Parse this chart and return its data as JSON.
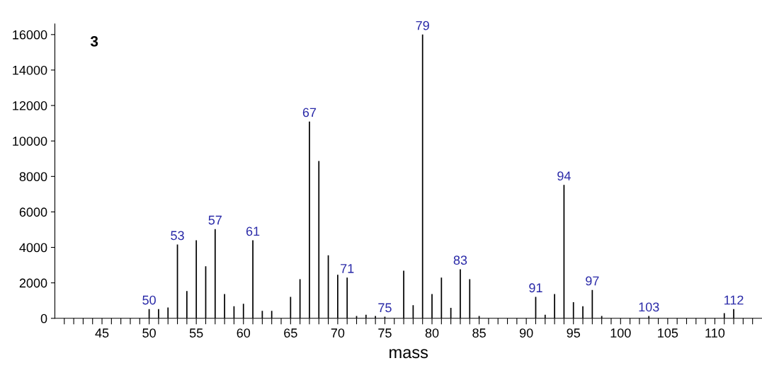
{
  "chart_data": {
    "type": "bar",
    "xlabel": "mass",
    "color": "#000000",
    "x": [
      50,
      51,
      52,
      53,
      54,
      55,
      56,
      57,
      58,
      59,
      60,
      61,
      62,
      63,
      65,
      66,
      67,
      68,
      69,
      70,
      71,
      72,
      73,
      74,
      75,
      77,
      78,
      79,
      80,
      81,
      82,
      83,
      84,
      85,
      91,
      92,
      93,
      94,
      95,
      96,
      97,
      98,
      103,
      111,
      112
    ],
    "values": [
      520,
      520,
      610,
      4160,
      1540,
      4400,
      2930,
      5030,
      1370,
      680,
      820,
      4400,
      420,
      420,
      1210,
      2210,
      11100,
      8870,
      3550,
      2460,
      2300,
      130,
      200,
      130,
      90,
      2690,
      740,
      16000,
      1370,
      2300,
      590,
      2770,
      2210,
      130,
      1210,
      200,
      1370,
      7520,
      910,
      680,
      1600,
      130,
      130,
      290,
      520
    ],
    "annotations": [
      "3",
      {
        "text": "50",
        "x": 50,
        "y": 520
      },
      {
        "text": "53",
        "x": 53,
        "y": 4160
      },
      {
        "text": "57",
        "x": 57,
        "y": 5030
      },
      {
        "text": "61",
        "x": 61,
        "y": 4400
      },
      {
        "text": "67",
        "x": 67,
        "y": 11100
      },
      {
        "text": "71",
        "x": 71,
        "y": 2300
      },
      {
        "text": "75",
        "x": 75,
        "y": 90
      },
      {
        "text": "79",
        "x": 79,
        "y": 16000
      },
      {
        "text": "83",
        "x": 83,
        "y": 2770
      },
      {
        "text": "91",
        "x": 91,
        "y": 1210
      },
      {
        "text": "94",
        "x": 94,
        "y": 7520
      },
      {
        "text": "97",
        "x": 97,
        "y": 1600
      },
      {
        "text": "103",
        "x": 103,
        "y": 130
      },
      {
        "text": "112",
        "x": 112,
        "y": 520
      }
    ],
    "xlim": [
      40,
      115
    ],
    "xticks": [
      {
        "value": 41,
        "label": null
      },
      {
        "value": 42,
        "label": null
      },
      {
        "value": 43,
        "label": null
      },
      {
        "value": 44,
        "label": null
      },
      45,
      {
        "value": 46,
        "label": null
      },
      {
        "value": 47,
        "label": null
      },
      {
        "value": 48,
        "label": null
      },
      {
        "value": 49,
        "label": null
      },
      50,
      {
        "value": 51,
        "label": null
      },
      {
        "value": 52,
        "label": null
      },
      {
        "value": 53,
        "label": null
      },
      {
        "value": 54,
        "label": null
      },
      55,
      {
        "value": 56,
        "label": null
      },
      {
        "value": 57,
        "label": null
      },
      {
        "value": 58,
        "label": null
      },
      {
        "value": 59,
        "label": null
      },
      60,
      {
        "value": 61,
        "label": null
      },
      {
        "value": 62,
        "label": null
      },
      {
        "value": 63,
        "label": null
      },
      {
        "value": 64,
        "label": null
      },
      65,
      {
        "value": 66,
        "label": null
      },
      {
        "value": 67,
        "label": null
      },
      {
        "value": 68,
        "label": null
      },
      {
        "value": 69,
        "label": null
      },
      70,
      {
        "value": 71,
        "label": null
      },
      {
        "value": 72,
        "label": null
      },
      {
        "value": 73,
        "label": null
      },
      {
        "value": 74,
        "label": null
      },
      75,
      {
        "value": 76,
        "label": null
      },
      {
        "value": 77,
        "label": null
      },
      {
        "value": 78,
        "label": null
      },
      {
        "value": 79,
        "label": null
      },
      80,
      {
        "value": 81,
        "label": null
      },
      {
        "value": 82,
        "label": null
      },
      {
        "value": 83,
        "label": null
      },
      {
        "value": 84,
        "label": null
      },
      85,
      {
        "value": 86,
        "label": null
      },
      {
        "value": 87,
        "label": null
      },
      {
        "value": 88,
        "label": null
      },
      {
        "value": 89,
        "label": null
      },
      90,
      {
        "value": 91,
        "label": null
      },
      {
        "value": 92,
        "label": null
      },
      {
        "value": 93,
        "label": null
      },
      {
        "value": 94,
        "label": null
      },
      95,
      {
        "value": 96,
        "label": null
      },
      {
        "value": 97,
        "label": null
      },
      {
        "value": 98,
        "label": null
      },
      {
        "value": 99,
        "label": null
      },
      100,
      {
        "value": 101,
        "label": null
      },
      {
        "value": 102,
        "label": null
      },
      {
        "value": 103,
        "label": null
      },
      {
        "value": 104,
        "label": null
      },
      105,
      {
        "value": 106,
        "label": null
      },
      {
        "value": 107,
        "label": null
      },
      {
        "value": 108,
        "label": null
      },
      {
        "value": 109,
        "label": null
      },
      110,
      {
        "value": 111,
        "label": null
      },
      {
        "value": 112,
        "label": null
      },
      {
        "value": 113,
        "label": null
      },
      {
        "value": 114,
        "label": null
      }
    ],
    "ylim": [
      0,
      16600
    ],
    "yticks": [
      0,
      2000,
      4000,
      6000,
      8000,
      10000,
      12000,
      14000,
      16000
    ]
  }
}
